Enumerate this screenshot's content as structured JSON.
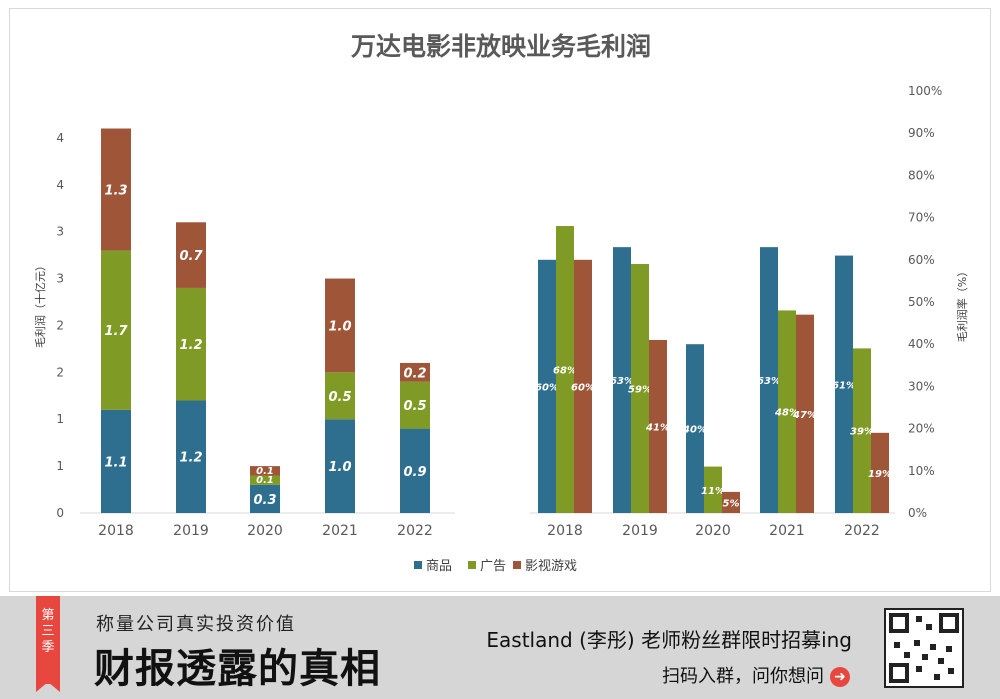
{
  "chart_data": [
    {
      "type": "bar",
      "stacked": true,
      "title": "万达电影非放映业务毛利润",
      "ylabel": "毛利润（十亿元）",
      "categories": [
        "2018",
        "2019",
        "2020",
        "2021",
        "2022"
      ],
      "ytick_labels": [
        "0",
        "1",
        "1",
        "2",
        "2",
        "3",
        "3",
        "4",
        "4"
      ],
      "ylim": [
        0,
        4.5
      ],
      "series": [
        {
          "name": "商品",
          "color": "#2e6e8e",
          "values": [
            1.1,
            1.2,
            0.3,
            1.0,
            0.9
          ],
          "labels": [
            "1.1",
            "1.2",
            "0.3",
            "1.0",
            "0.9"
          ]
        },
        {
          "name": "广告",
          "color": "#7f9a25",
          "values": [
            1.7,
            1.2,
            0.1,
            0.5,
            0.5
          ],
          "labels": [
            "1.7",
            "1.2",
            "0.1",
            "0.5",
            "0.5"
          ]
        },
        {
          "name": "影视游戏",
          "color": "#9e5538",
          "values": [
            1.3,
            0.7,
            0.1,
            1.0,
            0.2
          ],
          "labels": [
            "1.3",
            "0.7",
            "0.1",
            "1.0",
            "0.2"
          ]
        }
      ]
    },
    {
      "type": "bar",
      "stacked": false,
      "ylabel": "毛利润率（%）",
      "categories": [
        "2018",
        "2019",
        "2020",
        "2021",
        "2022"
      ],
      "ytick_labels": [
        "0%",
        "10%",
        "20%",
        "30%",
        "40%",
        "50%",
        "60%",
        "70%",
        "80%",
        "90%",
        "100%"
      ],
      "ylim": [
        0,
        100
      ],
      "series": [
        {
          "name": "商品",
          "color": "#2e6e8e",
          "values": [
            60,
            63,
            40,
            63,
            61
          ],
          "labels": [
            "60%",
            "63%",
            "40%",
            "63%",
            "61%"
          ]
        },
        {
          "name": "广告",
          "color": "#7f9a25",
          "values": [
            68,
            59,
            11,
            48,
            39
          ],
          "labels": [
            "68%",
            "59%",
            "11%",
            "48%",
            "39%"
          ]
        },
        {
          "name": "影视游戏",
          "color": "#9e5538",
          "values": [
            60,
            41,
            5,
            47,
            19
          ],
          "labels": [
            "60%",
            "41%",
            "5%",
            "47%",
            "19%"
          ]
        }
      ]
    }
  ],
  "legend": [
    {
      "label": "商品",
      "color": "#2e6e8e"
    },
    {
      "label": "广告",
      "color": "#7f9a25"
    },
    {
      "label": "影视游戏",
      "color": "#9e5538"
    }
  ],
  "banner": {
    "season_label": "第三季",
    "tagline": "称量公司真实投资价值",
    "headline": "财报透露的真相",
    "promo": "Eastland (李彤) 老师粉丝群限时招募ing",
    "cta": "扫码入群，问你想问",
    "cta_icon": "arrow-right-icon",
    "accent_color": "#e8473f"
  }
}
